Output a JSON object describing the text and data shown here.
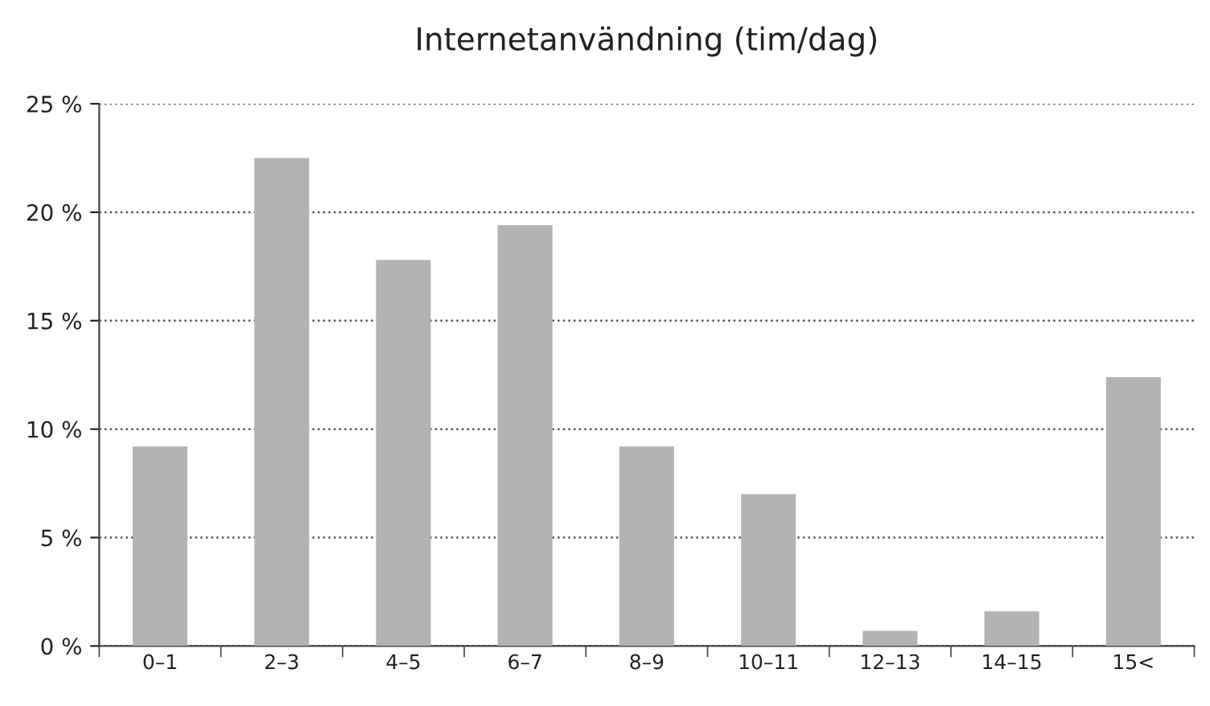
{
  "chart_data": {
    "type": "bar",
    "title": "Internetanvändning (tim/dag)",
    "categories": [
      "0–1",
      "2–3",
      "4–5",
      "6–7",
      "8–9",
      "10–11",
      "12–13",
      "14–15",
      "15<"
    ],
    "values": [
      9.2,
      22.5,
      17.8,
      19.4,
      9.2,
      7.0,
      0.7,
      1.6,
      12.4
    ],
    "color": "#b2b3b5",
    "ylim": [
      0,
      25
    ],
    "yticks": [
      {
        "value": 0,
        "label": "0 %"
      },
      {
        "value": 5,
        "label": "5 %"
      },
      {
        "value": 10,
        "label": "10 %"
      },
      {
        "value": 15,
        "label": "15 %"
      },
      {
        "value": 20,
        "label": "20 %"
      },
      {
        "value": 25,
        "label": "25 %"
      }
    ],
    "grid": "y",
    "line_style": "dotted"
  }
}
